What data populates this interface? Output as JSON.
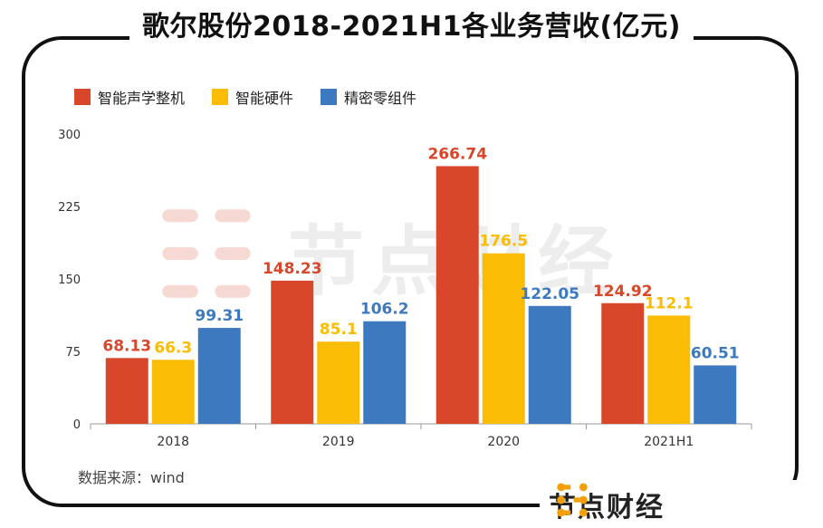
{
  "title": "歌尔股份2018-2021H1各业务营收(亿元)",
  "source": "数据来源：wind",
  "brand": {
    "name": "节点财经",
    "watermark": "节点财经"
  },
  "colors": {
    "acoustic": "#d9472b",
    "hardware": "#fbbc05",
    "components": "#3d79bf",
    "axis": "#888888",
    "text": "#222222"
  },
  "chart_data": {
    "type": "bar",
    "title": "歌尔股份2018-2021H1各业务营收(亿元)",
    "xlabel": "",
    "ylabel": "",
    "ylim": [
      0,
      300
    ],
    "yticks": [
      0,
      75,
      150,
      225,
      300
    ],
    "categories": [
      "2018",
      "2019",
      "2020",
      "2021H1"
    ],
    "legend_position": "top-left",
    "series": [
      {
        "name": "智能声学整机",
        "color": "#d9472b",
        "values": [
          68.13,
          148.23,
          266.74,
          124.92
        ],
        "labels": [
          "68.13",
          "148.23",
          "266.74",
          "124.92"
        ]
      },
      {
        "name": "智能硬件",
        "color": "#fbbc05",
        "values": [
          66.3,
          85.1,
          176.5,
          112.1
        ],
        "labels": [
          "66.3",
          "85.1",
          "176.5",
          "112.1"
        ]
      },
      {
        "name": "精密零组件",
        "color": "#3d79bf",
        "values": [
          99.31,
          106.2,
          122.05,
          60.51
        ],
        "labels": [
          "99.31",
          "106.2",
          "122.05",
          "60.51"
        ]
      }
    ]
  }
}
